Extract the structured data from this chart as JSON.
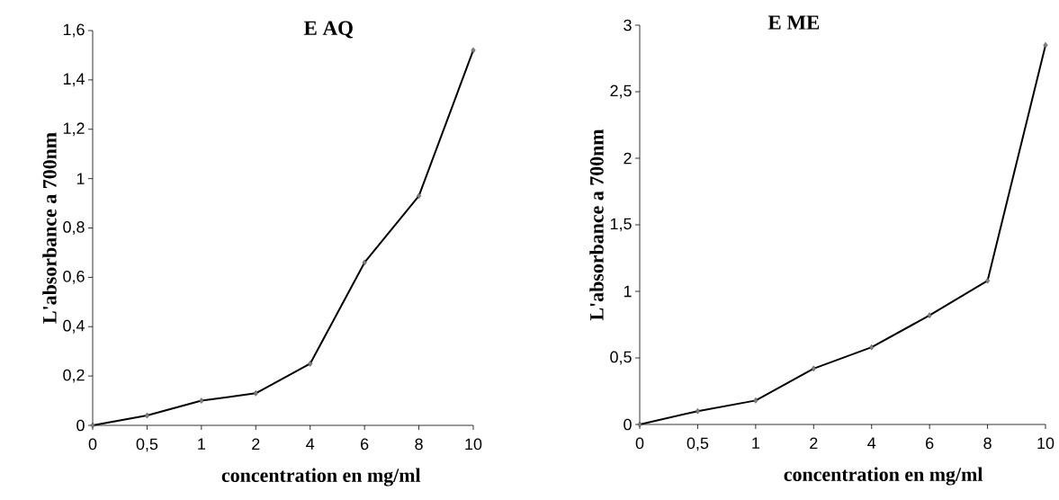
{
  "chart_data": [
    {
      "type": "line",
      "title": "E AQ",
      "xlabel": "concentration en mg/ml",
      "ylabel": "L'absorbance a 700nm",
      "marker": "diamond",
      "categories": [
        "0",
        "0,5",
        "1",
        "2",
        "4",
        "6",
        "8",
        "10"
      ],
      "series": [
        {
          "color": "#000000",
          "values": [
            0,
            0.04,
            0.1,
            0.13,
            0.25,
            0.66,
            0.93,
            1.52
          ]
        }
      ],
      "ylim": [
        0,
        1.6
      ],
      "yticks": [
        0,
        {
          "value": 0.2,
          "label": "0,2"
        },
        {
          "value": 0.4,
          "label": "0,4"
        },
        {
          "value": 0.6,
          "label": "0,6"
        },
        {
          "value": 0.8,
          "label": "0,8"
        },
        1,
        {
          "value": 1.2,
          "label": "1,2"
        },
        {
          "value": 1.4,
          "label": "1,4"
        },
        {
          "value": 1.6,
          "label": "1,6"
        }
      ]
    },
    {
      "type": "line",
      "title": "E ME",
      "xlabel": "concentration en mg/ml",
      "ylabel": "L'absorbance a 700nm",
      "marker": "diamond",
      "categories": [
        "0",
        "0,5",
        "1",
        "2",
        "4",
        "6",
        "8",
        "10"
      ],
      "series": [
        {
          "color": "#000000",
          "values": [
            0,
            0.1,
            0.18,
            0.42,
            0.58,
            0.82,
            1.08,
            2.85
          ]
        }
      ],
      "ylim": [
        0,
        3
      ],
      "yticks": [
        0,
        {
          "value": 0.5,
          "label": "0,5"
        },
        1,
        {
          "value": 1.5,
          "label": "1,5"
        },
        2,
        {
          "value": 2.5,
          "label": "2,5"
        },
        3
      ]
    }
  ]
}
